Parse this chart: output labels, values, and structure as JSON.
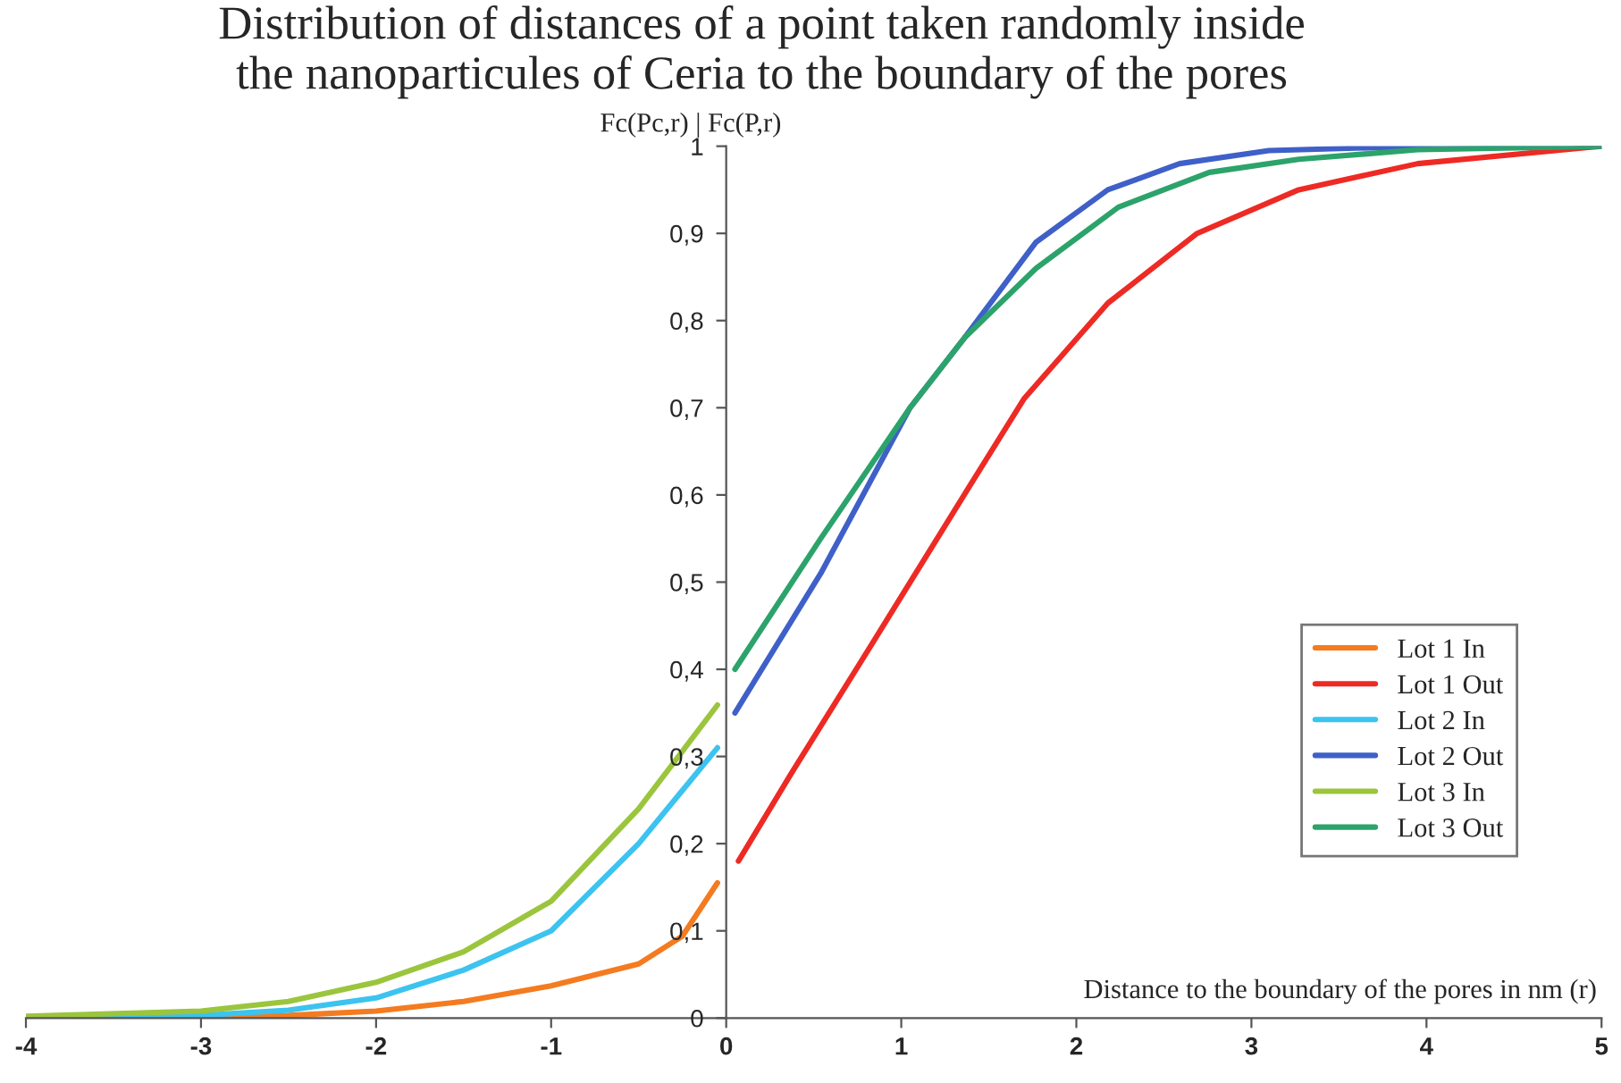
{
  "chart_data": {
    "type": "line",
    "title": "Distribution of distances of a point taken randomly inside\nthe nanoparticules of Ceria to the boundary of the pores",
    "xlabel": "Distance to the boundary of the pores in nm (r)",
    "ylabel": "Fc(Pc,r) | Fc(P,r)",
    "series": [
      {
        "name": "Lot 1 In",
        "color": "#f47b20",
        "x": [
          -4,
          -3,
          -2.5,
          -2,
          -1.5,
          -1,
          -0.5,
          -0.25,
          -0.05
        ],
        "values": [
          0,
          0.001,
          0.003,
          0.008,
          0.019,
          0.037,
          0.062,
          0.094,
          0.155
        ]
      },
      {
        "name": "Lot 1 Out",
        "color": "#ee2a24",
        "x": [
          0.07,
          0.37,
          0.82,
          1.39,
          1.7,
          2.18,
          2.69,
          3.27,
          3.95,
          5
        ],
        "values": [
          0.18,
          0.28,
          0.425,
          0.61,
          0.71,
          0.82,
          0.9,
          0.95,
          0.98,
          1
        ]
      },
      {
        "name": "Lot 2 In",
        "color": "#3cc3ef",
        "x": [
          -4,
          -3,
          -2.5,
          -2,
          -1.5,
          -1,
          -0.5,
          -0.05
        ],
        "values": [
          0.001,
          0.003,
          0.009,
          0.023,
          0.055,
          0.1,
          0.2,
          0.31
        ]
      },
      {
        "name": "Lot 2 Out",
        "color": "#3f60c8",
        "x": [
          0.05,
          0.54,
          1.05,
          1.36,
          1.77,
          2.18,
          2.59,
          3.1,
          4,
          5
        ],
        "values": [
          0.35,
          0.51,
          0.7,
          0.78,
          0.89,
          0.95,
          0.98,
          0.995,
          1,
          1
        ]
      },
      {
        "name": "Lot 3 In",
        "color": "#9bc53d",
        "x": [
          -4,
          -3,
          -2.5,
          -2,
          -1.5,
          -1,
          -0.5,
          -0.05
        ],
        "values": [
          0.002,
          0.008,
          0.019,
          0.041,
          0.076,
          0.134,
          0.24,
          0.359
        ]
      },
      {
        "name": "Lot 3 Out",
        "color": "#2ca36b",
        "x": [
          0.05,
          0.54,
          1.05,
          1.36,
          1.77,
          2.24,
          2.76,
          3.27,
          3.95,
          5
        ],
        "values": [
          0.4,
          0.55,
          0.7,
          0.78,
          0.86,
          0.93,
          0.97,
          0.985,
          0.996,
          1
        ]
      }
    ],
    "xlim": [
      -4,
      5
    ],
    "xticks": [
      -4,
      -3,
      -2,
      -1,
      0,
      1,
      2,
      3,
      4,
      5
    ],
    "ylim": [
      0,
      1
    ],
    "yticks": [
      0,
      {
        "value": 0.1,
        "label": "0,1"
      },
      {
        "value": 0.2,
        "label": "0,2"
      },
      {
        "value": 0.3,
        "label": "0,3"
      },
      {
        "value": 0.4,
        "label": "0,4"
      },
      {
        "value": 0.5,
        "label": "0,5"
      },
      {
        "value": 0.6,
        "label": "0,6"
      },
      {
        "value": 0.7,
        "label": "0,7"
      },
      {
        "value": 0.8,
        "label": "0,8"
      },
      {
        "value": 0.9,
        "label": "0,9"
      },
      1
    ],
    "grid": false,
    "legend": "lower right",
    "marker": "none",
    "line_style": "solid"
  }
}
